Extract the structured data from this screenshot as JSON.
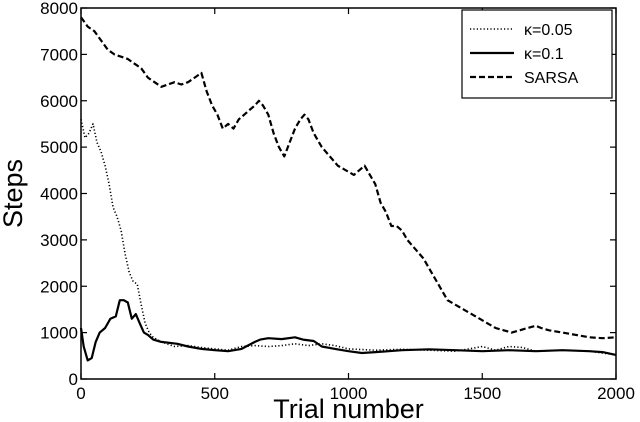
{
  "chart_data": {
    "type": "line",
    "xlabel": "Trial number",
    "ylabel": "Steps",
    "xlim": [
      0,
      2000
    ],
    "ylim": [
      0,
      8000
    ],
    "xticks": [
      0,
      500,
      1000,
      1500,
      2000
    ],
    "yticks": [
      0,
      1000,
      2000,
      3000,
      4000,
      5000,
      6000,
      7000,
      8000
    ],
    "xtick_labels": [
      "0",
      "500",
      "1000",
      "1500",
      "2000"
    ],
    "ytick_labels": [
      "0",
      "1000",
      "2000",
      "3000",
      "4000",
      "5000",
      "6000",
      "7000",
      "8000"
    ],
    "grid": false,
    "legend_position": "top-right",
    "series": [
      {
        "name": "κ=0.05",
        "style": "dotted",
        "color": "#000000",
        "points": [
          [
            0,
            5600
          ],
          [
            15,
            5200
          ],
          [
            30,
            5300
          ],
          [
            45,
            5500
          ],
          [
            60,
            5100
          ],
          [
            75,
            4900
          ],
          [
            90,
            4600
          ],
          [
            105,
            4200
          ],
          [
            120,
            3700
          ],
          [
            135,
            3500
          ],
          [
            150,
            3200
          ],
          [
            165,
            2700
          ],
          [
            180,
            2300
          ],
          [
            195,
            2100
          ],
          [
            210,
            2050
          ],
          [
            225,
            1600
          ],
          [
            240,
            1200
          ],
          [
            255,
            1000
          ],
          [
            270,
            900
          ],
          [
            300,
            800
          ],
          [
            350,
            700
          ],
          [
            400,
            720
          ],
          [
            450,
            680
          ],
          [
            500,
            650
          ],
          [
            550,
            620
          ],
          [
            600,
            700
          ],
          [
            650,
            720
          ],
          [
            700,
            700
          ],
          [
            750,
            720
          ],
          [
            800,
            760
          ],
          [
            850,
            720
          ],
          [
            900,
            760
          ],
          [
            950,
            720
          ],
          [
            1000,
            650
          ],
          [
            1100,
            620
          ],
          [
            1200,
            640
          ],
          [
            1300,
            620
          ],
          [
            1400,
            600
          ],
          [
            1450,
            650
          ],
          [
            1500,
            700
          ],
          [
            1550,
            620
          ],
          [
            1600,
            700
          ],
          [
            1650,
            680
          ],
          [
            1700,
            600
          ],
          [
            1800,
            620
          ],
          [
            1900,
            600
          ],
          [
            2000,
            520
          ]
        ]
      },
      {
        "name": "κ=0.1",
        "style": "solid",
        "color": "#000000",
        "points": [
          [
            0,
            1100
          ],
          [
            10,
            700
          ],
          [
            25,
            400
          ],
          [
            40,
            450
          ],
          [
            55,
            800
          ],
          [
            70,
            1000
          ],
          [
            90,
            1100
          ],
          [
            110,
            1300
          ],
          [
            130,
            1350
          ],
          [
            145,
            1700
          ],
          [
            160,
            1700
          ],
          [
            175,
            1650
          ],
          [
            190,
            1300
          ],
          [
            205,
            1400
          ],
          [
            220,
            1200
          ],
          [
            235,
            1000
          ],
          [
            250,
            950
          ],
          [
            270,
            850
          ],
          [
            300,
            800
          ],
          [
            330,
            780
          ],
          [
            360,
            760
          ],
          [
            400,
            700
          ],
          [
            450,
            650
          ],
          [
            500,
            620
          ],
          [
            550,
            600
          ],
          [
            600,
            650
          ],
          [
            650,
            800
          ],
          [
            670,
            850
          ],
          [
            700,
            880
          ],
          [
            750,
            860
          ],
          [
            800,
            900
          ],
          [
            830,
            850
          ],
          [
            870,
            820
          ],
          [
            900,
            700
          ],
          [
            950,
            650
          ],
          [
            1000,
            600
          ],
          [
            1050,
            560
          ],
          [
            1100,
            580
          ],
          [
            1150,
            600
          ],
          [
            1200,
            620
          ],
          [
            1300,
            640
          ],
          [
            1400,
            620
          ],
          [
            1500,
            600
          ],
          [
            1600,
            620
          ],
          [
            1700,
            600
          ],
          [
            1800,
            620
          ],
          [
            1900,
            600
          ],
          [
            1950,
            580
          ],
          [
            2000,
            520
          ]
        ]
      },
      {
        "name": "SARSA",
        "style": "dashed",
        "color": "#000000",
        "points": [
          [
            0,
            7800
          ],
          [
            25,
            7600
          ],
          [
            50,
            7500
          ],
          [
            75,
            7300
          ],
          [
            100,
            7100
          ],
          [
            125,
            7000
          ],
          [
            150,
            6950
          ],
          [
            175,
            6900
          ],
          [
            200,
            6800
          ],
          [
            225,
            6700
          ],
          [
            250,
            6500
          ],
          [
            275,
            6400
          ],
          [
            300,
            6300
          ],
          [
            325,
            6350
          ],
          [
            350,
            6400
          ],
          [
            375,
            6350
          ],
          [
            400,
            6400
          ],
          [
            425,
            6500
          ],
          [
            450,
            6600
          ],
          [
            470,
            6200
          ],
          [
            490,
            5900
          ],
          [
            510,
            5700
          ],
          [
            530,
            5400
          ],
          [
            550,
            5500
          ],
          [
            570,
            5400
          ],
          [
            590,
            5600
          ],
          [
            610,
            5700
          ],
          [
            630,
            5800
          ],
          [
            650,
            5900
          ],
          [
            665,
            6000
          ],
          [
            680,
            5900
          ],
          [
            700,
            5700
          ],
          [
            720,
            5300
          ],
          [
            740,
            5000
          ],
          [
            760,
            4800
          ],
          [
            780,
            5100
          ],
          [
            800,
            5400
          ],
          [
            820,
            5600
          ],
          [
            835,
            5700
          ],
          [
            850,
            5600
          ],
          [
            870,
            5300
          ],
          [
            900,
            5000
          ],
          [
            930,
            4800
          ],
          [
            960,
            4600
          ],
          [
            990,
            4500
          ],
          [
            1020,
            4400
          ],
          [
            1040,
            4500
          ],
          [
            1060,
            4600
          ],
          [
            1080,
            4400
          ],
          [
            1100,
            4200
          ],
          [
            1120,
            3800
          ],
          [
            1140,
            3600
          ],
          [
            1160,
            3300
          ],
          [
            1180,
            3300
          ],
          [
            1200,
            3200
          ],
          [
            1220,
            3000
          ],
          [
            1250,
            2800
          ],
          [
            1280,
            2600
          ],
          [
            1310,
            2300
          ],
          [
            1340,
            2000
          ],
          [
            1370,
            1700
          ],
          [
            1400,
            1600
          ],
          [
            1430,
            1500
          ],
          [
            1460,
            1400
          ],
          [
            1490,
            1300
          ],
          [
            1520,
            1200
          ],
          [
            1550,
            1100
          ],
          [
            1580,
            1050
          ],
          [
            1610,
            1000
          ],
          [
            1640,
            1050
          ],
          [
            1670,
            1100
          ],
          [
            1700,
            1150
          ],
          [
            1720,
            1100
          ],
          [
            1750,
            1050
          ],
          [
            1800,
            1000
          ],
          [
            1850,
            950
          ],
          [
            1900,
            900
          ],
          [
            1950,
            880
          ],
          [
            2000,
            900
          ]
        ]
      }
    ]
  }
}
